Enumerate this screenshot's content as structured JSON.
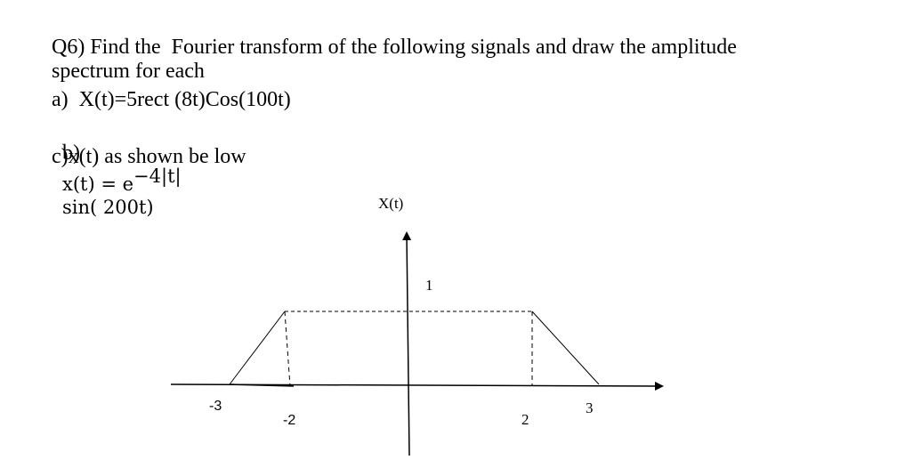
{
  "question": {
    "heading": "Q6) Find the  Fourier transform of the following signals and draw the amplitude",
    "heading_cont": "spectrum for each",
    "a": "a)  X(t)=5rect (8t)Cos(100t)",
    "b": {
      "label": "b)",
      "lhs": "x(t) = e",
      "exponent": "−4|t|",
      "rhs": "sin( 200t)"
    },
    "c": "c)x(t) as shown be low"
  },
  "figure": {
    "axis_label": "X(t)",
    "level": "1",
    "ticks": [
      "-3",
      "-2",
      "2",
      "3"
    ]
  }
}
